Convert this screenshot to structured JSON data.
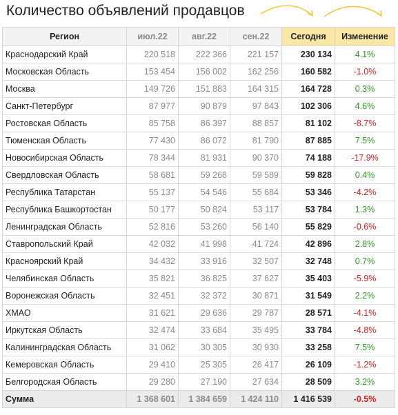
{
  "title": "Количество объявлений продавцов",
  "headers": {
    "region": "Регион",
    "jul": "июл.22",
    "aug": "авг.22",
    "sep": "сен.22",
    "today": "Сегодня",
    "change": "Изменение"
  },
  "colors": {
    "positive": "#2a9a1f",
    "negative": "#d81f1f",
    "highlight": "#fce8a6",
    "arrow": "#f5c642"
  },
  "rows": [
    {
      "region": "Краснодарский Край",
      "jul": "220 518",
      "aug": "222 366",
      "sep": "221 157",
      "today": "230 134",
      "change": "4.1%",
      "sign": "pos"
    },
    {
      "region": "Московская Область",
      "jul": "153 454",
      "aug": "156 002",
      "sep": "162 256",
      "today": "160 582",
      "change": "-1.0%",
      "sign": "neg"
    },
    {
      "region": "Москва",
      "jul": "149 726",
      "aug": "151 883",
      "sep": "164 315",
      "today": "164 728",
      "change": "0.3%",
      "sign": "pos"
    },
    {
      "region": "Санкт-Петербург",
      "jul": "87 977",
      "aug": "90 879",
      "sep": "97 843",
      "today": "102 306",
      "change": "4.6%",
      "sign": "pos"
    },
    {
      "region": "Ростовская Область",
      "jul": "85 758",
      "aug": "86 397",
      "sep": "88 857",
      "today": "81 102",
      "change": "-8.7%",
      "sign": "neg"
    },
    {
      "region": "Тюменская Область",
      "jul": "77 430",
      "aug": "86 072",
      "sep": "81 790",
      "today": "87 885",
      "change": "7.5%",
      "sign": "pos"
    },
    {
      "region": "Новосибирская Область",
      "jul": "78 344",
      "aug": "81 931",
      "sep": "90 370",
      "today": "74 188",
      "change": "-17.9%",
      "sign": "neg"
    },
    {
      "region": "Свердловская Область",
      "jul": "58 681",
      "aug": "59 268",
      "sep": "59 589",
      "today": "59 828",
      "change": "0.4%",
      "sign": "pos"
    },
    {
      "region": "Республика Татарстан",
      "jul": "55 137",
      "aug": "54 546",
      "sep": "55 684",
      "today": "53 346",
      "change": "-4.2%",
      "sign": "neg"
    },
    {
      "region": "Республика Башкортостан",
      "jul": "50 177",
      "aug": "50 824",
      "sep": "53 117",
      "today": "53 784",
      "change": "1.3%",
      "sign": "pos"
    },
    {
      "region": "Ленинградская Область",
      "jul": "52 816",
      "aug": "53 260",
      "sep": "56 140",
      "today": "55 829",
      "change": "-0.6%",
      "sign": "neg"
    },
    {
      "region": "Ставропольский Край",
      "jul": "42 032",
      "aug": "41 998",
      "sep": "41 724",
      "today": "42 896",
      "change": "2.8%",
      "sign": "pos"
    },
    {
      "region": "Красноярский Край",
      "jul": "34 432",
      "aug": "33 916",
      "sep": "32 507",
      "today": "32 748",
      "change": "0.7%",
      "sign": "pos"
    },
    {
      "region": "Челябинская Область",
      "jul": "35 821",
      "aug": "36 825",
      "sep": "37 627",
      "today": "35 403",
      "change": "-5.9%",
      "sign": "neg"
    },
    {
      "region": "Воронежская Область",
      "jul": "32 451",
      "aug": "32 372",
      "sep": "30 871",
      "today": "31 549",
      "change": "2.2%",
      "sign": "pos"
    },
    {
      "region": "ХМАО",
      "jul": "31 621",
      "aug": "29 636",
      "sep": "29 787",
      "today": "28 571",
      "change": "-4.1%",
      "sign": "neg"
    },
    {
      "region": "Иркутская Область",
      "jul": "32 474",
      "aug": "33 684",
      "sep": "35 495",
      "today": "33 784",
      "change": "-4.8%",
      "sign": "neg"
    },
    {
      "region": "Калининградская Область",
      "jul": "31 062",
      "aug": "30 305",
      "sep": "30 930",
      "today": "33 258",
      "change": "7.5%",
      "sign": "pos"
    },
    {
      "region": "Кемеровская Область",
      "jul": "29 410",
      "aug": "25 305",
      "sep": "26 417",
      "today": "26 109",
      "change": "-1.2%",
      "sign": "neg"
    },
    {
      "region": "Белгородская Область",
      "jul": "29 280",
      "aug": "27 190",
      "sep": "27 634",
      "today": "28 509",
      "change": "3.2%",
      "sign": "pos"
    }
  ],
  "total": {
    "region": "Сумма",
    "jul": "1 368 601",
    "aug": "1 384 659",
    "sep": "1 424 110",
    "today": "1 416 539",
    "change": "-0.5%",
    "sign": "neg"
  }
}
